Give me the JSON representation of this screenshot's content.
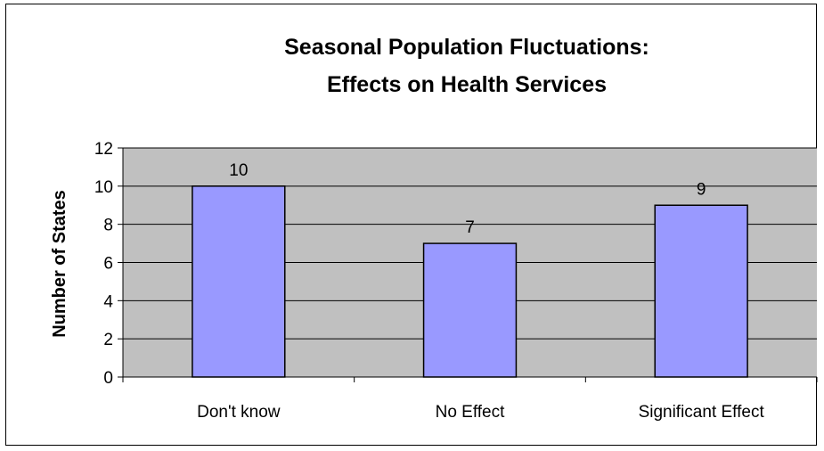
{
  "chart_data": {
    "type": "bar",
    "title_lines": [
      "Seasonal Population Fluctuations:",
      "Effects on Health Services"
    ],
    "xlabel": "",
    "ylabel": "Number of States",
    "categories": [
      "Don't know",
      "No Effect",
      "Significant Effect"
    ],
    "values": [
      10,
      7,
      9
    ],
    "data_labels": [
      "10",
      "7",
      "9"
    ],
    "ylim": [
      0,
      12
    ],
    "yticks": [
      "0",
      "2",
      "4",
      "6",
      "8",
      "10",
      "12"
    ],
    "grid": true,
    "legend": "none",
    "colors": {
      "bar_fill": "#9999ff",
      "bar_stroke": "#000000",
      "plot_background": "#c0c0c0",
      "grid": "#000000"
    }
  }
}
